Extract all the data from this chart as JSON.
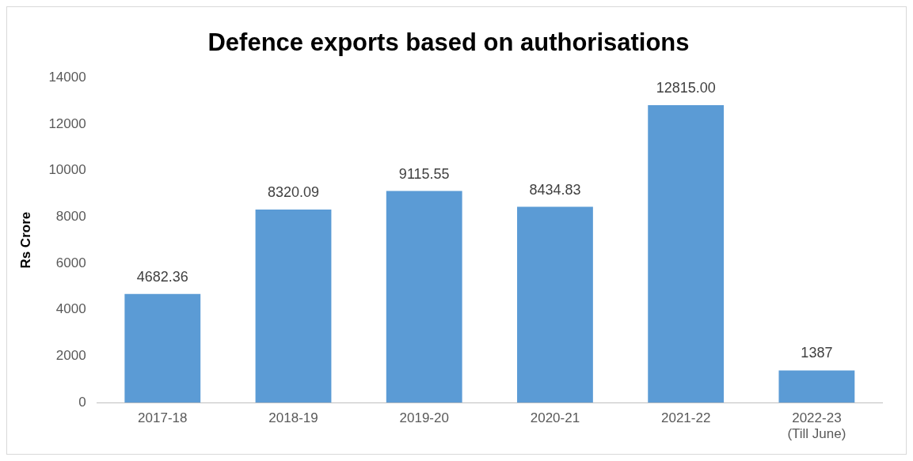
{
  "chart_data": {
    "type": "bar",
    "title": "Defence exports based on authorisations",
    "ylabel": "Rs Crore",
    "categories": [
      "2017-18",
      "2018-19",
      "2019-20",
      "2020-21",
      "2021-22",
      "2022-23 (Till June)"
    ],
    "values": [
      4682.36,
      8320.09,
      9115.55,
      8434.83,
      12815,
      1387
    ],
    "value_labels": [
      "4682.36",
      "8320.09",
      "9115.55",
      "8434.83",
      "12815.00",
      "1387"
    ],
    "color": "#5b9bd5",
    "ylim": [
      0,
      14000
    ],
    "yticks": [
      0,
      2000,
      4000,
      6000,
      8000,
      10000,
      12000,
      14000
    ],
    "grid": false,
    "legend": false
  }
}
